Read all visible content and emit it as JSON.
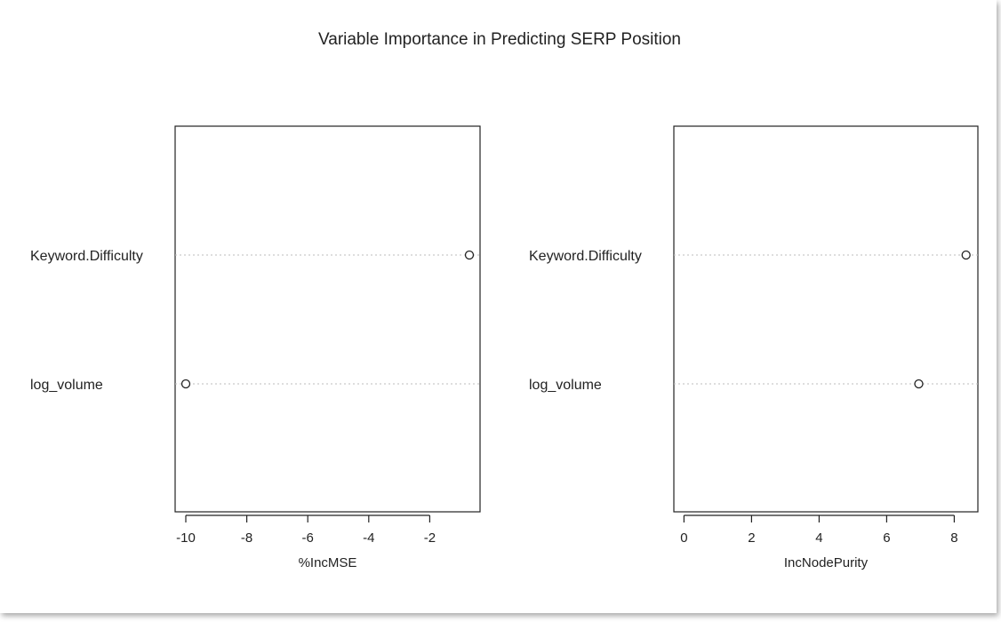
{
  "title": "Variable Importance in Predicting SERP Position",
  "chart_data": [
    {
      "type": "scatter",
      "subtype": "dotchart",
      "categories": [
        "Keyword.Difficulty",
        "log_volume"
      ],
      "values": [
        -0.7,
        -10.0
      ],
      "xlabel": "%IncMSE",
      "ylabel": "",
      "xlim": [
        -10.35,
        -0.35
      ],
      "xticks": [
        -10,
        -8,
        -6,
        -4,
        -2
      ],
      "grid": "dotted horizontal guide lines"
    },
    {
      "type": "scatter",
      "subtype": "dotchart",
      "categories": [
        "Keyword.Difficulty",
        "log_volume"
      ],
      "values": [
        8.35,
        6.95
      ],
      "xlabel": "IncNodePurity",
      "ylabel": "",
      "xlim": [
        -0.3,
        8.7
      ],
      "xticks": [
        0,
        2,
        4,
        6,
        8
      ],
      "grid": "dotted horizontal guide lines"
    }
  ],
  "colors": {
    "axis": "#222222",
    "guide": "#bdbdbd",
    "point": "#222222",
    "background": "#ffffff"
  }
}
